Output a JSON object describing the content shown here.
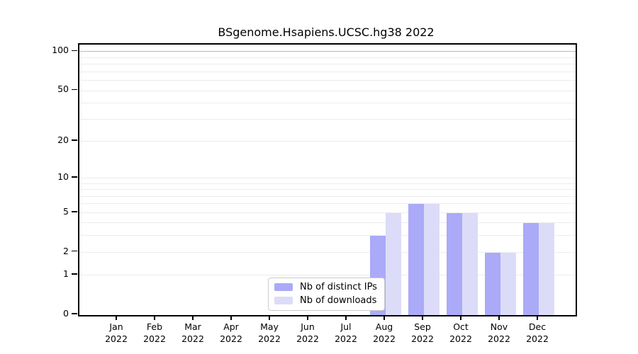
{
  "chart_data": {
    "type": "bar",
    "title": "BSgenome.Hsapiens.UCSC.hg38 2022",
    "categories": [
      {
        "month": "Jan",
        "year": "2022"
      },
      {
        "month": "Feb",
        "year": "2022"
      },
      {
        "month": "Mar",
        "year": "2022"
      },
      {
        "month": "Apr",
        "year": "2022"
      },
      {
        "month": "May",
        "year": "2022"
      },
      {
        "month": "Jun",
        "year": "2022"
      },
      {
        "month": "Jul",
        "year": "2022"
      },
      {
        "month": "Aug",
        "year": "2022"
      },
      {
        "month": "Sep",
        "year": "2022"
      },
      {
        "month": "Oct",
        "year": "2022"
      },
      {
        "month": "Nov",
        "year": "2022"
      },
      {
        "month": "Dec",
        "year": "2022"
      }
    ],
    "series": [
      {
        "name": "Nb of distinct IPs",
        "color": "#aaaaf8",
        "values": [
          0,
          0,
          0,
          0,
          0,
          0,
          0,
          3,
          6,
          5,
          2,
          4
        ]
      },
      {
        "name": "Nb of downloads",
        "color": "#dcdcf8",
        "values": [
          0,
          0,
          0,
          0,
          0,
          0,
          0,
          5,
          6,
          5,
          2,
          4
        ]
      }
    ],
    "y_axis": {
      "scale": "log1p",
      "tick_values": [
        0,
        1,
        2,
        5,
        10,
        20,
        50,
        100
      ],
      "tick_labels": [
        "0",
        "1",
        "2",
        "5",
        "10",
        "20",
        "50",
        "100"
      ],
      "minor_gridlines": [
        1,
        2,
        3,
        4,
        5,
        6,
        7,
        8,
        9,
        10,
        20,
        30,
        40,
        50,
        60,
        70,
        80,
        90
      ],
      "major_gridlines": [
        100
      ],
      "ylim": [
        0,
        115
      ]
    },
    "legend_position": "inside-bottom",
    "grid": "on",
    "colors": {
      "minor_grid": "#ececec",
      "major_grid": "#bbbbbb",
      "axis": "#000000",
      "background": "#ffffff"
    }
  }
}
